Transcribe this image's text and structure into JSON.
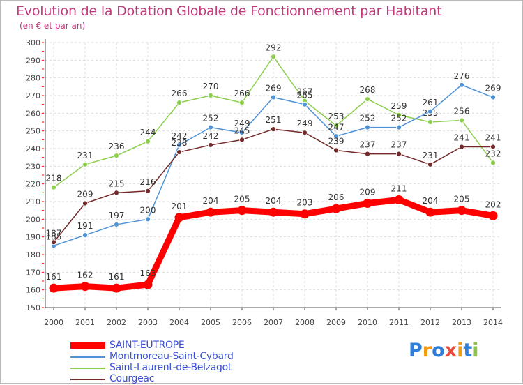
{
  "header": {
    "title": "Evolution de la Dotation Globale de Fonctionnement par Habitant",
    "subtitle": "(en € et par an)"
  },
  "logo": {
    "text": "Proxiti",
    "colors": [
      "#2f7fd9",
      "#f39c12",
      "#2f7fd9",
      "#e74c3c",
      "#f39c12",
      "#2f7fd9",
      "#8bc34a"
    ]
  },
  "chart_data": {
    "type": "line",
    "x": [
      "2000",
      "2001",
      "2002",
      "2003",
      "2004",
      "2005",
      "2006",
      "2007",
      "2008",
      "2009",
      "2010",
      "2011",
      "2012",
      "2013",
      "2014"
    ],
    "ylim": [
      150,
      300
    ],
    "yticks": [
      150,
      160,
      170,
      180,
      190,
      200,
      210,
      220,
      230,
      240,
      250,
      260,
      270,
      280,
      290,
      300
    ],
    "grid": true,
    "legend_position": "bottom-left",
    "series": [
      {
        "name": "Saint-Laurent-de-Belzagot",
        "color": "#8ccf4d",
        "values": [
          218,
          231,
          236,
          244,
          266,
          270,
          266,
          292,
          267,
          253,
          268,
          259,
          255,
          256,
          232
        ]
      },
      {
        "name": "Montmoreau-Saint-Cybard",
        "color": "#4f93d6",
        "values": [
          185,
          191,
          197,
          200,
          242,
          252,
          249,
          269,
          265,
          247,
          252,
          252,
          261,
          276,
          269
        ]
      },
      {
        "name": "Courgeac",
        "color": "#722a2a",
        "values": [
          187,
          209,
          215,
          216,
          238,
          242,
          245,
          251,
          249,
          239,
          237,
          237,
          231,
          241,
          241
        ]
      },
      {
        "name": "SAINT-EUTROPE",
        "color": "#ff0000",
        "values": [
          161,
          162,
          161,
          163,
          201,
          204,
          205,
          204,
          203,
          206,
          209,
          211,
          204,
          205,
          202
        ]
      }
    ]
  }
}
